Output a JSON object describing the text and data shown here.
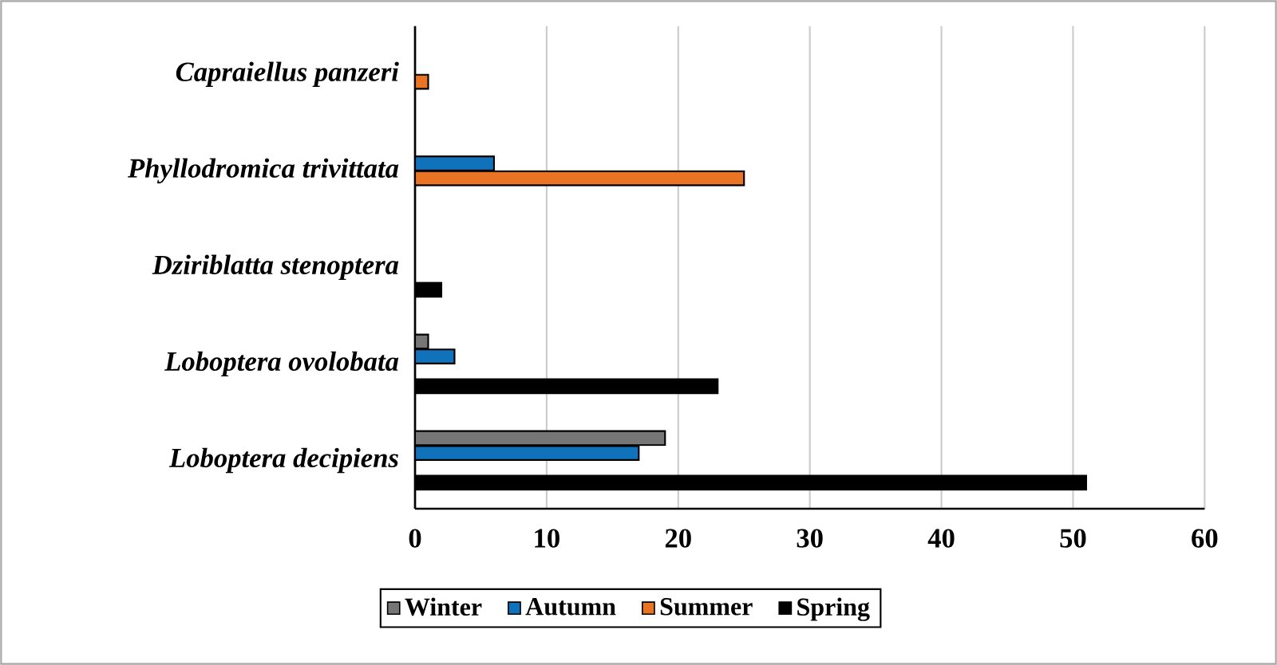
{
  "chart_data": {
    "type": "bar",
    "orientation": "horizontal",
    "categories": [
      "Capraiellus panzeri",
      "Phyllodromica trivittata",
      "Dziriblatta stenoptera",
      "Loboptera ovolobata",
      "Loboptera decipiens"
    ],
    "series": [
      {
        "name": "Winter",
        "color": "#767676",
        "values": [
          null,
          null,
          null,
          1,
          19
        ]
      },
      {
        "name": "Autumn",
        "color": "#1072ba",
        "values": [
          null,
          6,
          null,
          3,
          17
        ]
      },
      {
        "name": "Summer",
        "color": "#e87424",
        "values": [
          1,
          25,
          null,
          null,
          null
        ]
      },
      {
        "name": "Spring",
        "color": "#000000",
        "values": [
          null,
          null,
          2,
          23,
          51
        ]
      }
    ],
    "xlim": [
      0,
      60
    ],
    "xticks": [
      0,
      10,
      20,
      30,
      40,
      50,
      60
    ],
    "grid": "x",
    "legend": "bottom"
  }
}
